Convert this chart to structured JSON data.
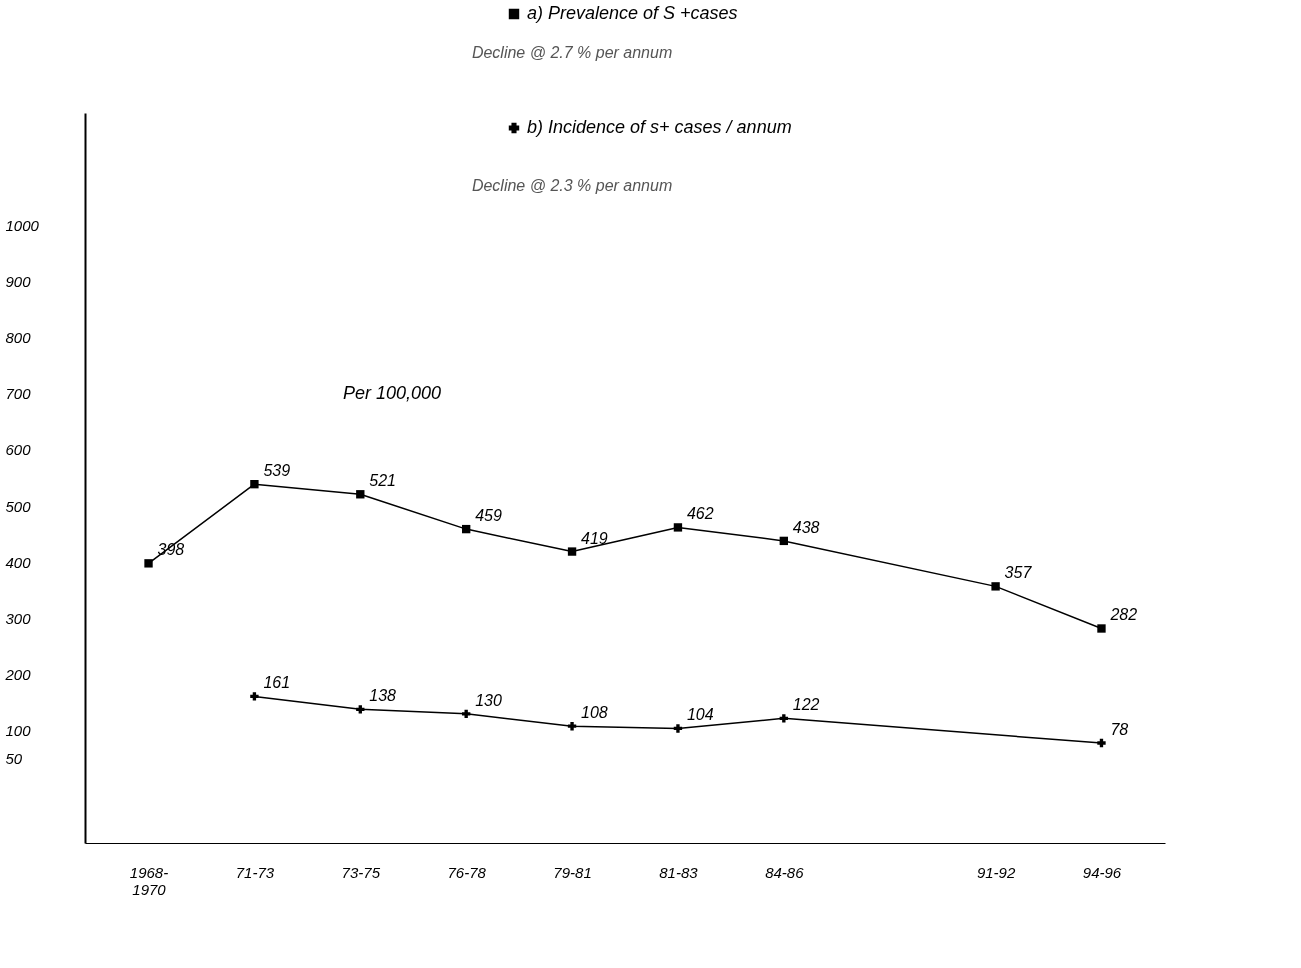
{
  "chart_data": {
    "type": "line",
    "categories": [
      "1968-\n1970",
      "71-73",
      "73-75",
      "76-78",
      "79-81",
      "81-83",
      "84-86",
      null,
      "91-92",
      "94-96"
    ],
    "series": [
      {
        "name": "a) Prevalence of S +cases",
        "color": "#000000",
        "marker": "square",
        "values": [
          398,
          539,
          521,
          459,
          419,
          462,
          438,
          null,
          357,
          282
        ]
      },
      {
        "name": "b) Incidence of s+ cases / annum",
        "color": "#000000",
        "marker": "cross",
        "values": [
          null,
          161,
          138,
          130,
          108,
          104,
          122,
          null,
          null,
          78
        ]
      }
    ],
    "ylim": [
      -100,
      1200
    ],
    "yticks": [
      50,
      100,
      200,
      300,
      400,
      500,
      600,
      700,
      800,
      900,
      {
        "value": 1000,
        "label": "1000"
      }
    ],
    "annotations": [
      "Decline @ 2.7 % per annum",
      "Decline @ 2.3 % per annum",
      "Per 100,000"
    ],
    "data_labels": true,
    "grid": false,
    "legend": "top",
    "line_style": "solid"
  }
}
